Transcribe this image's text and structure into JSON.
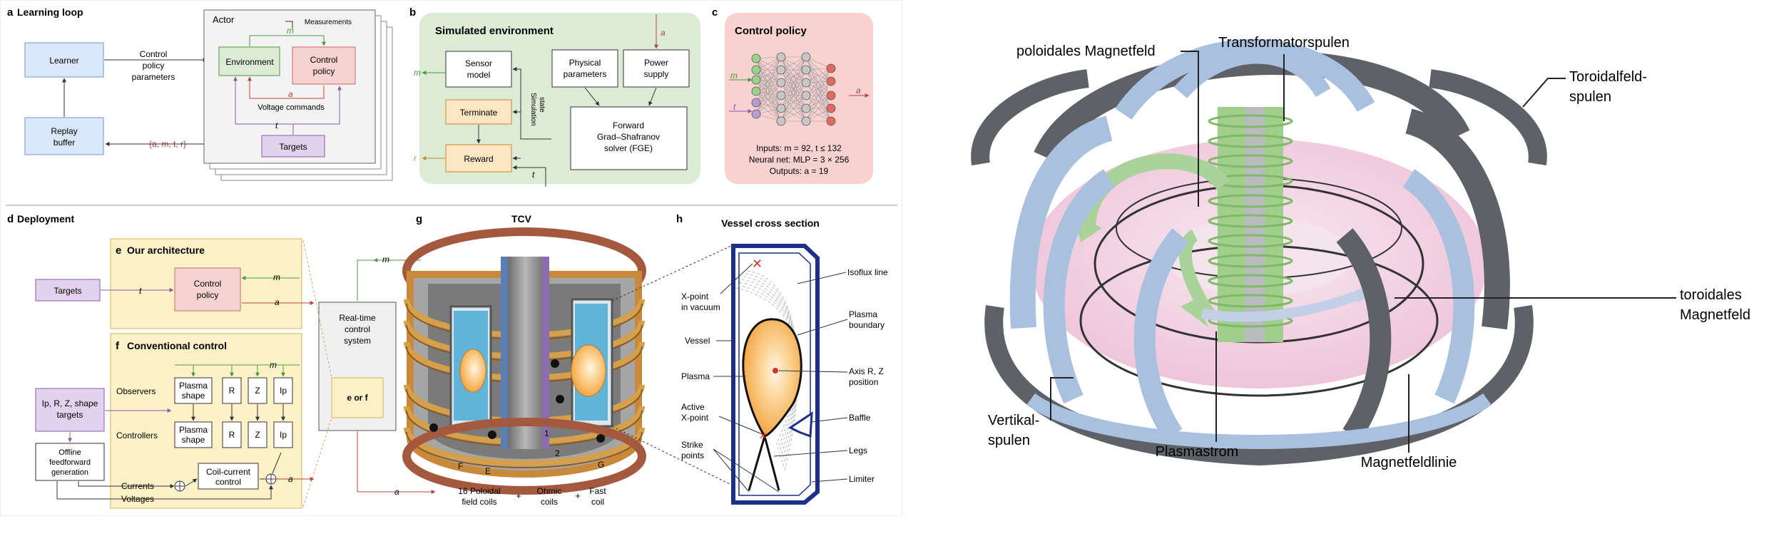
{
  "left_figure": {
    "a": {
      "letter": "a",
      "title": "Learning loop",
      "learner": "Learner",
      "replay": [
        "Replay",
        "buffer"
      ],
      "control_params": [
        "Control",
        "policy",
        "parameters"
      ],
      "tuple": "{a, m, t, r}",
      "actor": "Actor",
      "measurements": "Measurements",
      "m": "m",
      "environment": "Environment",
      "control_policy": [
        "Control",
        "policy"
      ],
      "a": "a",
      "voltage_commands": "Voltage commands",
      "t": "t",
      "targets": "Targets"
    },
    "b": {
      "letter": "b",
      "title": "Simulated environment",
      "sensor_model": [
        "Sensor",
        "model"
      ],
      "physical_params": [
        "Physical",
        "parameters"
      ],
      "power_supply": [
        "Power",
        "supply"
      ],
      "terminate": "Terminate",
      "reward": "Reward",
      "simulation_state": [
        "Simulation",
        "state"
      ],
      "fge": [
        "Forward",
        "Grad–Shafranov",
        "solver (FGE)"
      ],
      "m": "m",
      "r": "r",
      "a": "a",
      "t": "t"
    },
    "c": {
      "letter": "c",
      "title": "Control policy",
      "m": "m",
      "t": "t",
      "a": "a",
      "inputs": "Inputs: m = 92, t ≤ 132",
      "net": "Neural net: MLP = 3 × 256",
      "outputs": "Outputs: a = 19"
    },
    "d": {
      "letter": "d",
      "title": "Deployment",
      "targets": "Targets",
      "t": "t",
      "m": "m",
      "a": "a",
      "shape_targets": [
        "Ip, R, Z, shape",
        "targets"
      ],
      "offline_ff": [
        "Offline",
        "feedforward",
        "generation"
      ],
      "currents": "Currents",
      "voltages": "Voltages",
      "realtime": [
        "Real-time",
        "control",
        "system"
      ],
      "eorf": "e or f"
    },
    "e": {
      "letter": "e",
      "title": "Our architecture",
      "control_policy": [
        "Control",
        "policy"
      ]
    },
    "f": {
      "letter": "f",
      "title": "Conventional control",
      "observers": "Observers",
      "controllers": "Controllers",
      "plasma_shape": [
        "Plasma",
        "shape"
      ],
      "r": "R",
      "z": "Z",
      "ip": "Ip",
      "coil_current": [
        "Coil-current",
        "control"
      ],
      "a": "a",
      "m": "m"
    },
    "g": {
      "letter": "g",
      "title": "TCV",
      "a": "a",
      "m": "m",
      "label_F": "F",
      "label_E": "E",
      "label_1": "1",
      "label_2": "2",
      "label_G": "G",
      "poloidal": [
        "16 Poloidal",
        "field coils"
      ],
      "ohmic": [
        "Ohmic",
        "coils"
      ],
      "fast": [
        "Fast",
        "coil"
      ],
      "plus": "+"
    },
    "h": {
      "letter": "h",
      "title": "Vessel cross section",
      "isoflux": "Isoflux line",
      "xpoint_vacuum": [
        "X-point",
        "in vacuum"
      ],
      "vessel": "Vessel",
      "plasma_boundary": [
        "Plasma",
        "boundary"
      ],
      "plasma": "Plasma",
      "axis": [
        "Axis R, Z",
        "position"
      ],
      "active_xpoint": [
        "Active",
        "X-point"
      ],
      "baffle": "Baffle",
      "strike_points": [
        "Strike",
        "points"
      ],
      "legs": "Legs",
      "limiter": "Limiter"
    }
  },
  "right_figure": {
    "poloidal_field": "poloidales Magnetfeld",
    "transformer_coils": "Transformatorspulen",
    "toroidal_coils": [
      "Toroidalfeld-",
      "spulen"
    ],
    "toroidal_field": [
      "toroidales",
      "Magnetfeld"
    ],
    "vertical_coils": [
      "Vertikal-",
      "spulen"
    ],
    "plasma_current": "Plasmastrom",
    "field_line": "Magnetfeldlinie"
  },
  "colors": {
    "blue_box": "#dbe8fb",
    "blue_border": "#6f94cf",
    "red_box": "#f6d3d1",
    "red_border": "#cc6b66",
    "green_panel": "#dcebd6",
    "pink_panel": "#f7d2d0",
    "yellow_panel": "#fdf1c8",
    "purple_box": "#e2d2ee",
    "orange_box": "#fce6c4",
    "coil_brown": "#a4593e",
    "plasma_pink": "#f2c3d8",
    "coil_blue": "#a9c1de",
    "coil_green": "#a9d39a"
  }
}
